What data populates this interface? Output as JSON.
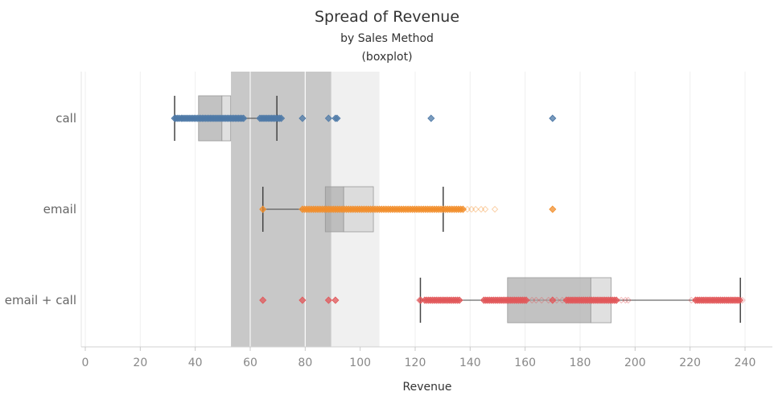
{
  "chart_data": {
    "type": "boxplot",
    "title": "Spread of Revenue",
    "subtitle_lines": [
      "by Sales Method",
      "(boxplot)"
    ],
    "xlabel": "Revenue",
    "xlim": [
      0,
      250
    ],
    "x_ticks": [
      0,
      20,
      40,
      60,
      80,
      100,
      120,
      140,
      160,
      180,
      200,
      220,
      240
    ],
    "grid": "vertical",
    "reference_bands": [
      {
        "from": 53,
        "to": 89.5,
        "color": "#c8c8c8"
      },
      {
        "from": 89.5,
        "to": 107,
        "color": "#f0f0f0"
      }
    ],
    "reference_lines": [
      60,
      80
    ],
    "categories": [
      {
        "name": "call",
        "color": "#4e79a7",
        "box": {
          "whisker_low": 32.5,
          "q1": 41.2,
          "median": 49.7,
          "q3": 52.9,
          "whisker_high": 69.7
        },
        "points": [
          32.5,
          33,
          33.6,
          34.2,
          34.9,
          35.4,
          36,
          36.6,
          37.2,
          37.8,
          38.4,
          39,
          39.6,
          40.2,
          40.8,
          41.4,
          42,
          42.6,
          43.2,
          43.8,
          44.4,
          45,
          45.6,
          46.2,
          46.8,
          47.4,
          48,
          48.6,
          49.2,
          49.8,
          50.4,
          51,
          51.6,
          52.2,
          52.8,
          53.4,
          54,
          54.6,
          55.2,
          55.8,
          56.4,
          57,
          57.6,
          63.5,
          64.1,
          64.7,
          65.3,
          65.9,
          66.5,
          67.1,
          67.7,
          68.3,
          68.9,
          69.5,
          70.1,
          70.7,
          71.3,
          79,
          88.5,
          91,
          91.6,
          125.8,
          170
        ],
        "faint_points": [
          170
        ]
      },
      {
        "name": "email",
        "color": "#f28e2b",
        "box": {
          "whisker_low": 64.6,
          "q1": 87.3,
          "median": 94,
          "q3": 104.8,
          "whisker_high": 130.2
        },
        "points": [
          64.6,
          79,
          79.8,
          80.6,
          81.4,
          82.2,
          83,
          83.8,
          84.6,
          85.4,
          86.2,
          87,
          87.8,
          88.6,
          89.4,
          90.2,
          91,
          91.8,
          92.6,
          93.4,
          94.2,
          95,
          95.8,
          96.6,
          97.4,
          98.2,
          99,
          99.8,
          100.6,
          101.4,
          102.2,
          103,
          103.8,
          104.6,
          105.4,
          106.2,
          107,
          107.8,
          108.6,
          109.4,
          110.2,
          111,
          111.8,
          112.6,
          113.4,
          114.2,
          115,
          115.8,
          116.6,
          117.4,
          118.2,
          119,
          119.8,
          120.6,
          121.4,
          122.2,
          123,
          123.8,
          124.6,
          125.4,
          126.2,
          127,
          127.8,
          128.6,
          129.4,
          130.2,
          131,
          131.8,
          132.6,
          133.4,
          134.2,
          135,
          135.8,
          136.6,
          137.4,
          170
        ],
        "faint_points": [
          139,
          140.5,
          142,
          144,
          145.5,
          149
        ]
      },
      {
        "name": "email + call",
        "color": "#e15759",
        "box": {
          "whisker_low": 121.9,
          "q1": 153.6,
          "median": 183.9,
          "q3": 191.3,
          "whisker_high": 238.3
        },
        "points": [
          64.6,
          79,
          88.5,
          91,
          122,
          123.5,
          124.2,
          124.9,
          125.6,
          126.3,
          127,
          127.7,
          128.4,
          129.1,
          129.8,
          130.5,
          131.2,
          131.9,
          132.6,
          133.3,
          134,
          134.7,
          135.4,
          136.1,
          145,
          145.7,
          146.4,
          147.1,
          147.8,
          148.5,
          149.2,
          149.9,
          150.6,
          151.3,
          152,
          152.7,
          153.4,
          154.1,
          154.8,
          155.5,
          156.2,
          156.9,
          157.6,
          158.3,
          159,
          159.7,
          160.4,
          170,
          175,
          175.7,
          176.4,
          177.1,
          177.8,
          178.5,
          179.2,
          179.9,
          180.6,
          181.3,
          182,
          182.7,
          183.4,
          184.1,
          184.8,
          185.5,
          186.2,
          186.9,
          187.6,
          188.3,
          189,
          189.7,
          190.4,
          191.1,
          191.8,
          192.5,
          193.2,
          222,
          222.7,
          223.4,
          224.1,
          224.8,
          225.5,
          226.2,
          226.9,
          227.6,
          228.3,
          229,
          229.7,
          230.4,
          231.1,
          231.8,
          232.5,
          233.2,
          233.9,
          234.6,
          235.3,
          236,
          236.7,
          237.4,
          238.1
        ],
        "faint_points": [
          121.5,
          162.5,
          164,
          166,
          168.5,
          171.5,
          173.5,
          195,
          196.5,
          197.5,
          220.5,
          239
        ]
      }
    ]
  }
}
